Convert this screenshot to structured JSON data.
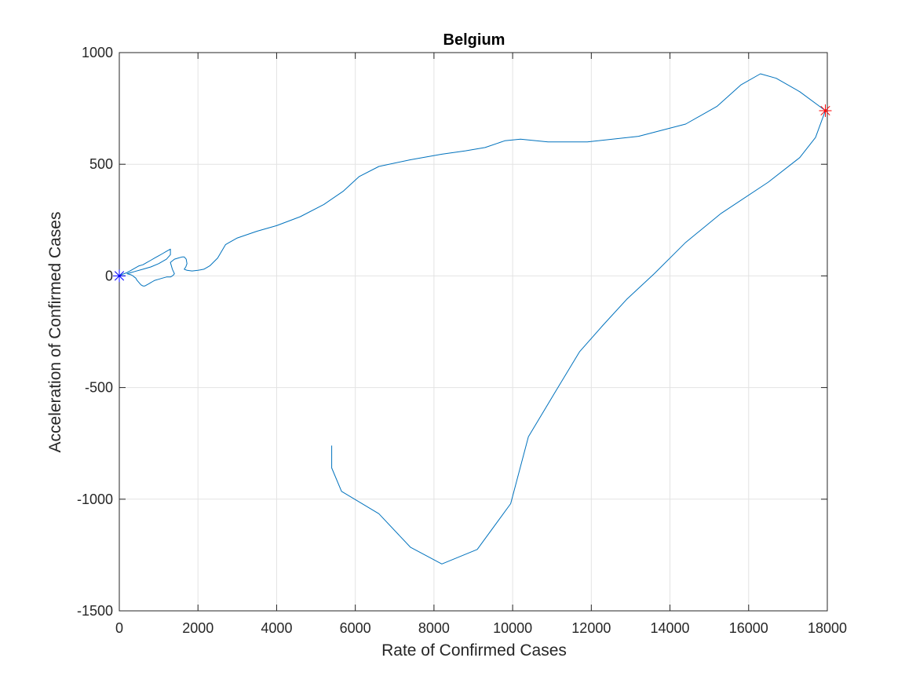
{
  "chart_data": {
    "type": "line",
    "title": "Belgium",
    "xlabel": "Rate of Confirmed Cases",
    "ylabel": "Acceleration of Confirmed Cases",
    "xlim": [
      0,
      18000
    ],
    "ylim": [
      -1500,
      1000
    ],
    "xticks": [
      0,
      2000,
      4000,
      6000,
      8000,
      10000,
      12000,
      14000,
      16000,
      18000
    ],
    "yticks": [
      -1500,
      -1000,
      -500,
      0,
      500,
      1000
    ],
    "xtick_labels": [
      "0",
      "2000",
      "4000",
      "6000",
      "8000",
      "10000",
      "12000",
      "14000",
      "16000",
      "18000"
    ],
    "ytick_labels": [
      "-1500",
      "-1000",
      "-500",
      "0",
      "500",
      "1000"
    ],
    "grid": true,
    "line_color": "#0072BD",
    "series": [
      {
        "x": [
          0,
          50,
          120,
          200,
          300,
          400,
          500,
          600,
          700,
          800,
          900,
          1000,
          1100,
          1200,
          1300,
          1300,
          1200,
          1000,
          800,
          600,
          400,
          300,
          200,
          300,
          350,
          380,
          420,
          450,
          500,
          550,
          600,
          650,
          700,
          750,
          800,
          850,
          900,
          1000,
          1100,
          1200,
          1300,
          1350,
          1380,
          1400,
          1350,
          1300,
          1400,
          1500,
          1600,
          1650,
          1700,
          1720,
          1690,
          1650,
          1720,
          1850,
          2000,
          2150,
          2300,
          2500,
          2700,
          2800,
          3000,
          3500,
          4000,
          4600,
          5200,
          5700,
          6100,
          6600,
          7400,
          8200,
          8800,
          9300,
          9800,
          10200,
          10900,
          11900,
          13200,
          14400,
          15200,
          15800,
          16300,
          16700,
          17300,
          17950,
          17700,
          17300,
          16500,
          15300,
          14400,
          13600,
          12900,
          12300,
          11700,
          11100,
          10400,
          9950,
          9100,
          8200,
          7400,
          6600,
          5650,
          5400,
          5400
        ],
        "y": [
          0,
          5,
          10,
          15,
          25,
          35,
          45,
          50,
          60,
          70,
          80,
          90,
          100,
          110,
          120,
          95,
          75,
          55,
          40,
          30,
          20,
          15,
          10,
          5,
          0,
          -5,
          -10,
          -20,
          -30,
          -40,
          -45,
          -45,
          -40,
          -35,
          -30,
          -25,
          -20,
          -15,
          -10,
          -5,
          -5,
          0,
          5,
          10,
          30,
          60,
          75,
          80,
          85,
          85,
          75,
          55,
          40,
          30,
          25,
          22,
          25,
          30,
          45,
          80,
          140,
          150,
          170,
          200,
          225,
          265,
          320,
          380,
          445,
          490,
          520,
          545,
          560,
          575,
          605,
          612,
          600,
          600,
          625,
          680,
          760,
          855,
          905,
          885,
          825,
          740,
          620,
          530,
          420,
          280,
          150,
          10,
          -105,
          -220,
          -340,
          -515,
          -720,
          -1020,
          -1225,
          -1290,
          -1215,
          -1065,
          -965,
          -860,
          -760
        ]
      }
    ],
    "markers": [
      {
        "name": "start",
        "x": 0,
        "y": 0,
        "symbol": "*",
        "color": "#0000ff"
      },
      {
        "name": "peak",
        "x": 17950,
        "y": 740,
        "symbol": "*",
        "color": "#ff0000"
      }
    ]
  }
}
